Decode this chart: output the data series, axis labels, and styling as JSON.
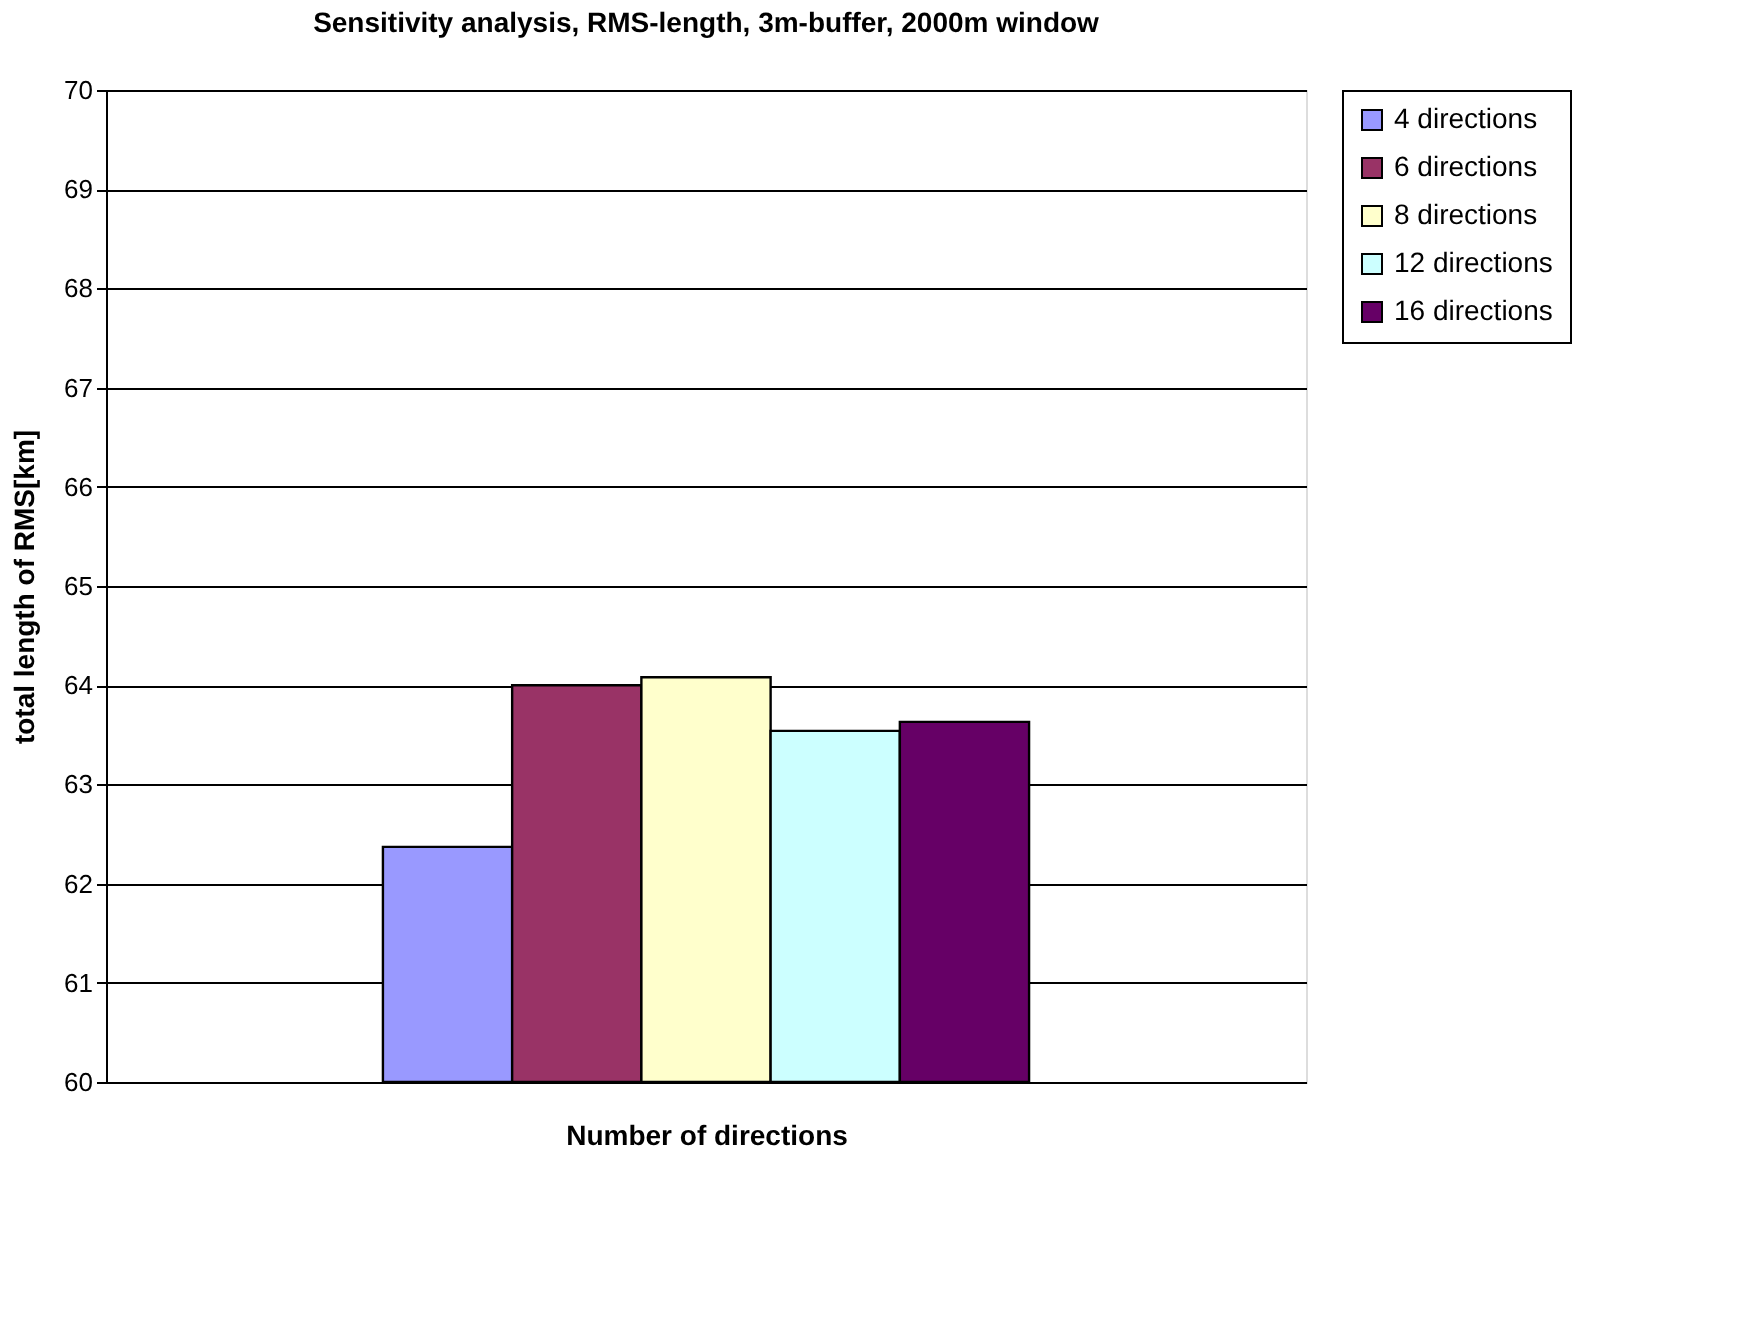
{
  "chart_data": {
    "type": "bar",
    "title": "Sensitivity analysis, RMS-length, 3m-buffer, 2000m window",
    "xlabel": "Number of directions",
    "ylabel": "total length of RMS[km]",
    "categories": [
      null
    ],
    "series": [
      {
        "name": "4 directions",
        "color": "#9999ff",
        "values": [
          62.37
        ]
      },
      {
        "name": "6 directions",
        "color": "#993366",
        "values": [
          64.0
        ]
      },
      {
        "name": "8 directions",
        "color": "#ffffcc",
        "values": [
          64.08
        ]
      },
      {
        "name": "12 directions",
        "color": "#ccffff",
        "values": [
          63.54
        ]
      },
      {
        "name": "16 directions",
        "color": "#660066",
        "values": [
          63.63
        ]
      }
    ],
    "ylim": [
      60,
      70
    ],
    "yticks": [
      60,
      61,
      62,
      63,
      64,
      65,
      66,
      67,
      68,
      69,
      70
    ],
    "grid": "y",
    "legend": "right"
  }
}
